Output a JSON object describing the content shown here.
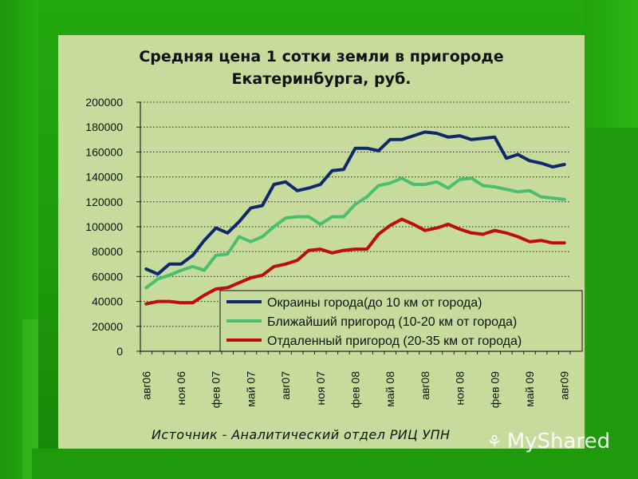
{
  "slide": {
    "source_note": "Источник - Аналитический отдел РИЦ УПН",
    "watermark": "MyShared"
  },
  "colors": {
    "background": "#1f9a0c",
    "panel": "#c7dc9c",
    "series": [
      "#0e2a6b",
      "#4cbe72",
      "#c00d0b"
    ]
  },
  "chart_data": {
    "type": "line",
    "title_line1": "Средняя цена 1 сотки земли в пригороде",
    "title_line2": "Екатеринбурга, руб.",
    "ylim": [
      0,
      200000
    ],
    "yticks": [
      0,
      20000,
      40000,
      60000,
      80000,
      100000,
      120000,
      140000,
      160000,
      180000,
      200000
    ],
    "grid": "horizontal dotted",
    "legend_position": "bottom-right",
    "x_tick_labels": [
      "авг06",
      "ноя 06",
      "фев 07",
      "май 07",
      "авг07",
      "ноя 07",
      "фев 08",
      "май 08",
      "авг08",
      "ноя 08",
      "фев 09",
      "май 09",
      "авг09"
    ],
    "categories": [
      "авг06",
      "сен06",
      "окт06",
      "ноя06",
      "дек06",
      "янв07",
      "фев07",
      "мар07",
      "апр07",
      "май07",
      "июн07",
      "июл07",
      "авг07",
      "сен07",
      "окт07",
      "ноя07",
      "дек07",
      "янв08",
      "фев08",
      "мар08",
      "апр08",
      "май08",
      "июн08",
      "июл08",
      "авг08",
      "сен08",
      "окт08",
      "ноя08",
      "дек08",
      "янв09",
      "фев09",
      "мар09",
      "апр09",
      "май09",
      "июн09",
      "июл09",
      "авг09"
    ],
    "series": [
      {
        "name": "Окраины города(до 10 км от города)",
        "values": [
          66000,
          62000,
          70000,
          70000,
          77000,
          89000,
          99000,
          95000,
          104000,
          115000,
          117000,
          134000,
          136000,
          129000,
          131000,
          134000,
          145000,
          146000,
          163000,
          163000,
          161000,
          170000,
          170000,
          173000,
          176000,
          175000,
          172000,
          173000,
          170000,
          171000,
          172000,
          155000,
          158000,
          153000,
          151000,
          148000,
          150000
        ]
      },
      {
        "name": "Ближайший пригород (10-20 км от города)",
        "values": [
          51000,
          58000,
          61000,
          65000,
          68000,
          65000,
          77000,
          78000,
          92000,
          88000,
          92000,
          100000,
          107000,
          108000,
          108000,
          102000,
          108000,
          108000,
          118000,
          124000,
          133000,
          135000,
          139000,
          134000,
          134000,
          136000,
          131000,
          138000,
          139000,
          133000,
          132000,
          130000,
          128000,
          129000,
          124000,
          123000,
          122000
        ]
      },
      {
        "name": "Отдаленный пригород (20-35 км от города)",
        "values": [
          38000,
          40000,
          40000,
          39000,
          39000,
          45000,
          50000,
          51000,
          55000,
          59000,
          61000,
          68000,
          70000,
          73000,
          81000,
          82000,
          79000,
          81000,
          82000,
          82000,
          94000,
          101000,
          106000,
          102000,
          97000,
          99000,
          102000,
          98000,
          95000,
          94000,
          97000,
          95000,
          92000,
          88000,
          89000,
          87000,
          87000
        ]
      }
    ]
  }
}
